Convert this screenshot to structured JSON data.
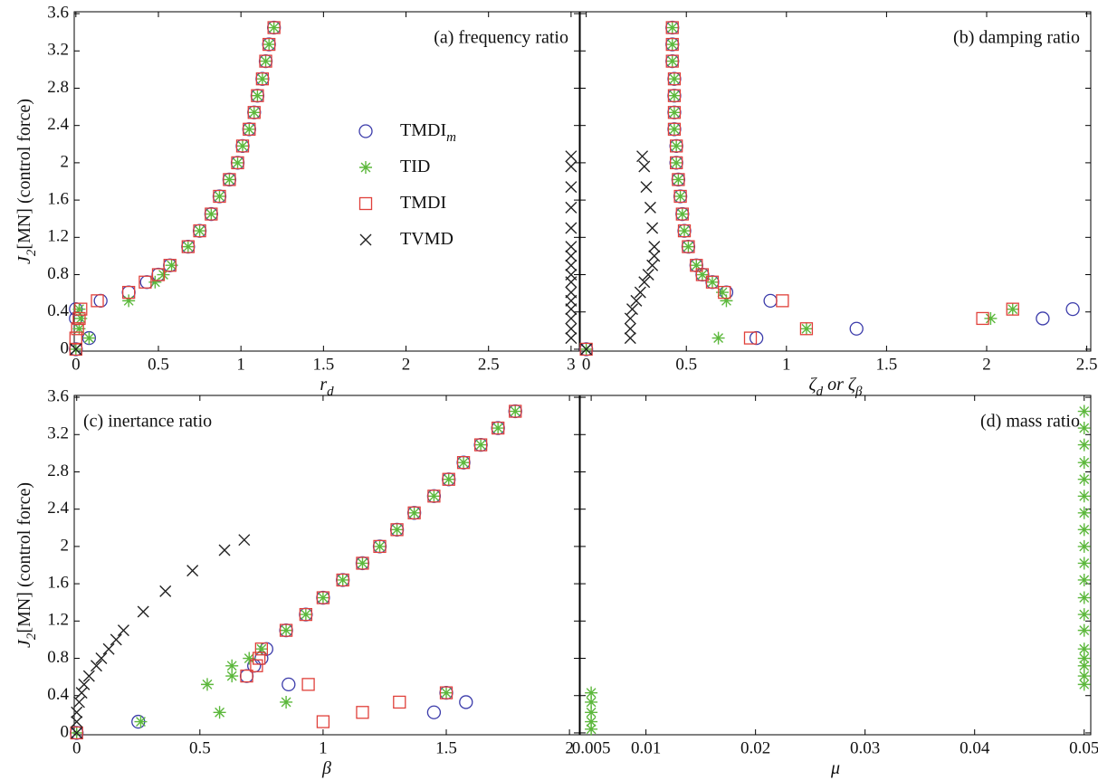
{
  "chart_data": [
    {
      "type": "scatter",
      "title": "(a) frequency ratio",
      "title_corner": "top-right",
      "xlabel": [
        {
          "text": "r",
          "sub": "d"
        }
      ],
      "ylabel": [
        {
          "text": "J",
          "sub": "2"
        },
        {
          "text": "[MN]  (control force)"
        }
      ],
      "xlim": [
        -0.01,
        3.05
      ],
      "ylim": [
        -0.02,
        3.62
      ],
      "xticks": [
        0,
        0.5,
        1,
        1.5,
        2,
        2.5,
        3
      ],
      "yticks": [
        0,
        0.4,
        0.8,
        1.2,
        1.6,
        2,
        2.4,
        2.8,
        3.2,
        3.6
      ],
      "ytick_labels": true,
      "legend": "center",
      "series": [
        {
          "name": "TMDI",
          "name_sub": "m",
          "marker": "o",
          "color": "#3b3baa",
          "x": [
            0,
            0.08,
            0,
            0,
            0.15,
            0.32,
            0.43,
            0.5,
            0.57,
            0.68,
            0.75,
            0.82,
            0.87,
            0.93,
            0.98,
            1.01,
            1.05,
            1.08,
            1.1,
            1.13,
            1.15,
            1.17,
            1.2
          ],
          "y": [
            0,
            0.12,
            0.33,
            0.43,
            0.52,
            0.61,
            0.72,
            0.8,
            0.9,
            1.1,
            1.27,
            1.45,
            1.64,
            1.82,
            2.0,
            2.18,
            2.36,
            2.54,
            2.72,
            2.9,
            3.09,
            3.27,
            3.45
          ]
        },
        {
          "name": "TID",
          "marker": "*",
          "color": "#5cb83c",
          "x": [
            0,
            0.08,
            0.02,
            0.03,
            0.02,
            0.32,
            0.48,
            0.53,
            0.58,
            0.68,
            0.75,
            0.82,
            0.87,
            0.93,
            0.98,
            1.01,
            1.05,
            1.08,
            1.1,
            1.13,
            1.15,
            1.17,
            1.2
          ],
          "y": [
            0,
            0.12,
            0.22,
            0.33,
            0.43,
            0.52,
            0.72,
            0.8,
            0.9,
            1.1,
            1.27,
            1.45,
            1.64,
            1.82,
            2.0,
            2.18,
            2.36,
            2.54,
            2.72,
            2.9,
            3.09,
            3.27,
            3.45
          ]
        },
        {
          "name": "TMDI",
          "marker": "s",
          "color": "#e0403a",
          "x": [
            0,
            0,
            0.01,
            0.02,
            0.03,
            0.13,
            0.32,
            0.42,
            0.5,
            0.57,
            0.68,
            0.75,
            0.82,
            0.87,
            0.93,
            0.98,
            1.01,
            1.05,
            1.08,
            1.1,
            1.13,
            1.15,
            1.17,
            1.2
          ],
          "y": [
            0,
            0.12,
            0.22,
            0.33,
            0.43,
            0.52,
            0.61,
            0.72,
            0.8,
            0.9,
            1.1,
            1.27,
            1.45,
            1.64,
            1.82,
            2.0,
            2.18,
            2.36,
            2.54,
            2.72,
            2.9,
            3.09,
            3.27,
            3.45
          ]
        },
        {
          "name": "TVMD",
          "marker": "x",
          "color": "#222222",
          "x": [
            0,
            3,
            3,
            3,
            3,
            3,
            3,
            3,
            3,
            3,
            3,
            3,
            3,
            3,
            3,
            3,
            3
          ],
          "y": [
            0,
            0.12,
            0.22,
            0.33,
            0.43,
            0.52,
            0.61,
            0.72,
            0.8,
            0.9,
            1.0,
            1.1,
            1.3,
            1.52,
            1.74,
            1.96,
            2.07
          ]
        }
      ]
    },
    {
      "type": "scatter",
      "title": "(b) damping ratio",
      "title_corner": "top-right",
      "xlabel": [
        {
          "text": "ζ",
          "sub": "d"
        },
        {
          "text": " or ζ",
          "sub": "β"
        }
      ],
      "xlim": [
        -0.03,
        2.52
      ],
      "ylim": [
        -0.02,
        3.62
      ],
      "xticks": [
        0,
        0.5,
        1,
        1.5,
        2,
        2.5
      ],
      "yticks": [
        0,
        0.4,
        0.8,
        1.2,
        1.6,
        2,
        2.4,
        2.8,
        3.2,
        3.6
      ],
      "ytick_labels": false,
      "series": [
        {
          "marker": "o",
          "color": "#3b3baa",
          "x": [
            0,
            0.85,
            1.35,
            2.28,
            2.43,
            0.92,
            0.7,
            0.63,
            0.58,
            0.55,
            0.51,
            0.49,
            0.48,
            0.47,
            0.46,
            0.45,
            0.45,
            0.44,
            0.44,
            0.44,
            0.44,
            0.43,
            0.43,
            0.43
          ],
          "y": [
            0,
            0.12,
            0.22,
            0.33,
            0.43,
            0.52,
            0.61,
            0.72,
            0.8,
            0.9,
            1.1,
            1.27,
            1.45,
            1.64,
            1.82,
            2.0,
            2.18,
            2.36,
            2.54,
            2.72,
            2.9,
            3.09,
            3.27,
            3.45
          ]
        },
        {
          "marker": "*",
          "color": "#5cb83c",
          "x": [
            0,
            0.66,
            1.1,
            2.02,
            2.13,
            0.7,
            0.68,
            0.63,
            0.58,
            0.55,
            0.51,
            0.49,
            0.48,
            0.47,
            0.46,
            0.45,
            0.45,
            0.44,
            0.44,
            0.44,
            0.44,
            0.43,
            0.43,
            0.43
          ],
          "y": [
            0,
            0.12,
            0.22,
            0.33,
            0.43,
            0.52,
            0.61,
            0.72,
            0.8,
            0.9,
            1.1,
            1.27,
            1.45,
            1.64,
            1.82,
            2.0,
            2.18,
            2.36,
            2.54,
            2.72,
            2.9,
            3.09,
            3.27,
            3.45
          ]
        },
        {
          "marker": "s",
          "color": "#e0403a",
          "x": [
            0,
            0.82,
            1.1,
            1.98,
            2.13,
            0.98,
            0.69,
            0.63,
            0.58,
            0.55,
            0.51,
            0.49,
            0.48,
            0.47,
            0.46,
            0.45,
            0.45,
            0.44,
            0.44,
            0.44,
            0.44,
            0.43,
            0.43,
            0.43
          ],
          "y": [
            0,
            0.12,
            0.22,
            0.33,
            0.43,
            0.52,
            0.61,
            0.72,
            0.8,
            0.9,
            1.1,
            1.27,
            1.45,
            1.64,
            1.82,
            2.0,
            2.18,
            2.36,
            2.54,
            2.72,
            2.9,
            3.09,
            3.27,
            3.45
          ]
        },
        {
          "marker": "x",
          "color": "#222222",
          "x": [
            0,
            0.22,
            0.22,
            0.22,
            0.23,
            0.25,
            0.27,
            0.29,
            0.31,
            0.33,
            0.34,
            0.34,
            0.33,
            0.32,
            0.3,
            0.29,
            0.28
          ],
          "y": [
            0,
            0.12,
            0.22,
            0.33,
            0.43,
            0.52,
            0.61,
            0.72,
            0.8,
            0.9,
            1.0,
            1.1,
            1.3,
            1.52,
            1.74,
            1.96,
            2.07
          ]
        }
      ]
    },
    {
      "type": "scatter",
      "title": "(c) inertance ratio",
      "title_corner": "top-left",
      "xlabel": [
        {
          "text": "β"
        }
      ],
      "ylabel": [
        {
          "text": "J",
          "sub": "2"
        },
        {
          "text": "[MN]  (control force)"
        }
      ],
      "xlim": [
        -0.01,
        2.04
      ],
      "ylim": [
        -0.02,
        3.62
      ],
      "xticks": [
        0,
        0.5,
        1,
        1.5,
        2
      ],
      "yticks": [
        0,
        0.4,
        0.8,
        1.2,
        1.6,
        2,
        2.4,
        2.8,
        3.2,
        3.6
      ],
      "ytick_labels": true,
      "series": [
        {
          "marker": "o",
          "color": "#3b3baa",
          "x": [
            0,
            0.25,
            1.45,
            1.58,
            1.5,
            0.86,
            0.69,
            0.72,
            0.75,
            0.77,
            0.85,
            0.93,
            1.0,
            1.08,
            1.16,
            1.23,
            1.3,
            1.37,
            1.45,
            1.51,
            1.57,
            1.64,
            1.71,
            1.78
          ],
          "y": [
            0,
            0.12,
            0.22,
            0.33,
            0.43,
            0.52,
            0.61,
            0.72,
            0.8,
            0.9,
            1.1,
            1.27,
            1.45,
            1.64,
            1.82,
            2.0,
            2.18,
            2.36,
            2.54,
            2.72,
            2.9,
            3.09,
            3.27,
            3.45
          ]
        },
        {
          "marker": "*",
          "color": "#5cb83c",
          "x": [
            0,
            0.26,
            0.58,
            0.85,
            1.5,
            0.53,
            0.63,
            0.63,
            0.7,
            0.75,
            0.85,
            0.93,
            1.0,
            1.08,
            1.16,
            1.23,
            1.3,
            1.37,
            1.45,
            1.51,
            1.57,
            1.64,
            1.71,
            1.78
          ],
          "y": [
            0,
            0.12,
            0.22,
            0.33,
            0.43,
            0.52,
            0.61,
            0.72,
            0.8,
            0.9,
            1.1,
            1.27,
            1.45,
            1.64,
            1.82,
            2.0,
            2.18,
            2.36,
            2.54,
            2.72,
            2.9,
            3.09,
            3.27,
            3.45
          ]
        },
        {
          "marker": "s",
          "color": "#e0403a",
          "x": [
            0,
            1.0,
            1.16,
            1.31,
            1.5,
            0.94,
            0.69,
            0.73,
            0.74,
            0.75,
            0.85,
            0.93,
            1.0,
            1.08,
            1.16,
            1.23,
            1.3,
            1.37,
            1.45,
            1.51,
            1.57,
            1.64,
            1.71,
            1.78
          ],
          "y": [
            0,
            0.12,
            0.22,
            0.33,
            0.43,
            0.52,
            0.61,
            0.72,
            0.8,
            0.9,
            1.1,
            1.27,
            1.45,
            1.64,
            1.82,
            2.0,
            2.18,
            2.36,
            2.54,
            2.72,
            2.9,
            3.09,
            3.27,
            3.45
          ]
        },
        {
          "marker": "x",
          "color": "#222222",
          "x": [
            0,
            0,
            0,
            0.01,
            0.02,
            0.03,
            0.05,
            0.08,
            0.1,
            0.13,
            0.16,
            0.19,
            0.27,
            0.36,
            0.47,
            0.6,
            0.68
          ],
          "y": [
            0,
            0.12,
            0.22,
            0.33,
            0.43,
            0.52,
            0.61,
            0.72,
            0.8,
            0.9,
            1.0,
            1.1,
            1.3,
            1.52,
            1.74,
            1.96,
            2.07
          ]
        }
      ]
    },
    {
      "type": "scatter",
      "title": "(d) mass ratio",
      "title_corner": "top-right",
      "xlabel": [
        {
          "text": "μ"
        }
      ],
      "xlim": [
        0.004,
        0.0506
      ],
      "ylim": [
        -0.02,
        3.62
      ],
      "xticks": [
        0.005,
        0.01,
        0.02,
        0.03,
        0.04,
        0.05
      ],
      "yticks": [
        0,
        0.4,
        0.8,
        1.2,
        1.6,
        2,
        2.4,
        2.8,
        3.2,
        3.6
      ],
      "ytick_labels": false,
      "series": [
        {
          "marker": "*",
          "color": "#5cb83c",
          "x": [
            0.005,
            0.005,
            0.005,
            0.005,
            0.005,
            0.05,
            0.05,
            0.05,
            0.05,
            0.05,
            0.05,
            0.05,
            0.05,
            0.05,
            0.05,
            0.05,
            0.05,
            0.05,
            0.05,
            0.05,
            0.05,
            0.05,
            0.05,
            0.05
          ],
          "y": [
            0.04,
            0.12,
            0.22,
            0.33,
            0.43,
            0.52,
            0.61,
            0.72,
            0.8,
            0.9,
            1.1,
            1.27,
            1.45,
            1.64,
            1.82,
            2.0,
            2.18,
            2.36,
            2.54,
            2.72,
            2.9,
            3.09,
            3.27,
            3.45
          ]
        }
      ]
    }
  ]
}
